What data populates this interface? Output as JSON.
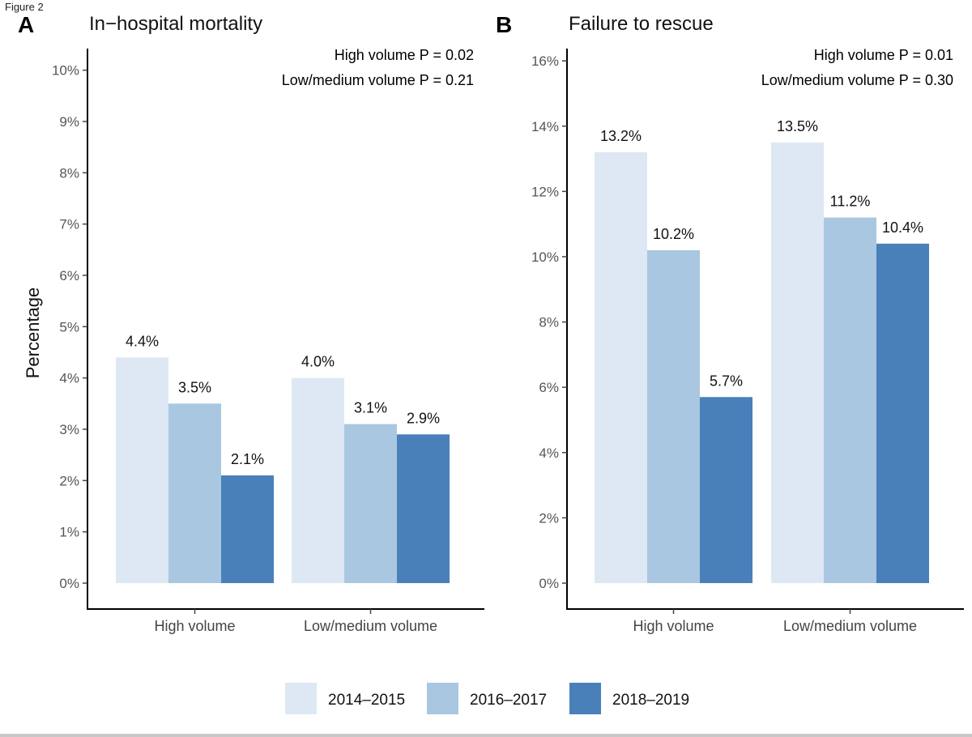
{
  "figure_label": "Figure 2",
  "y_axis_title": "Percentage",
  "legend": [
    {
      "label": "2014–2015",
      "color": "#dde8f4"
    },
    {
      "label": "2016–2017",
      "color": "#a9c7e0"
    },
    {
      "label": "2018–2019",
      "color": "#4a80ba"
    }
  ],
  "chart_data": [
    {
      "type": "bar",
      "panel": "A",
      "title": "In−hospital mortality",
      "categories": [
        "High volume",
        "Low/medium volume"
      ],
      "series": [
        {
          "name": "2014–2015",
          "values": [
            4.4,
            4.0
          ],
          "labels": [
            "4.4%",
            "4.0%"
          ]
        },
        {
          "name": "2016–2017",
          "values": [
            3.5,
            3.1
          ],
          "labels": [
            "3.5%",
            "3.1%"
          ]
        },
        {
          "name": "2018–2019",
          "values": [
            2.1,
            2.9
          ],
          "labels": [
            "2.1%",
            "2.9%"
          ]
        }
      ],
      "ylim": [
        0,
        10.5
      ],
      "yticks": [
        0,
        1,
        2,
        3,
        4,
        5,
        6,
        7,
        8,
        9,
        10
      ],
      "ytick_labels": [
        "0%",
        "1%",
        "2%",
        "3%",
        "4%",
        "5%",
        "6%",
        "7%",
        "8%",
        "9%",
        "10%"
      ],
      "ylabel": "Percentage",
      "xlabel": "",
      "annotations": [
        "High volume P = 0.02",
        "Low/medium volume P = 0.21"
      ]
    },
    {
      "type": "bar",
      "panel": "B",
      "title": "Failure to rescue",
      "categories": [
        "High volume",
        "Low/medium volume"
      ],
      "series": [
        {
          "name": "2014–2015",
          "values": [
            13.2,
            13.5
          ],
          "labels": [
            "13.2%",
            "13.5%"
          ]
        },
        {
          "name": "2016–2017",
          "values": [
            10.2,
            11.2
          ],
          "labels": [
            "10.2%",
            "11.2%"
          ]
        },
        {
          "name": "2018–2019",
          "values": [
            5.7,
            10.4
          ],
          "labels": [
            "5.7%",
            "10.4%"
          ]
        }
      ],
      "ylim": [
        0,
        16.5
      ],
      "yticks": [
        0,
        2,
        4,
        6,
        8,
        10,
        12,
        14,
        16
      ],
      "ytick_labels": [
        "0%",
        "2%",
        "4%",
        "6%",
        "8%",
        "10%",
        "12%",
        "14%",
        "16%"
      ],
      "ylabel": "",
      "xlabel": "",
      "annotations": [
        "High volume P = 0.01",
        "Low/medium volume P = 0.30"
      ]
    }
  ]
}
